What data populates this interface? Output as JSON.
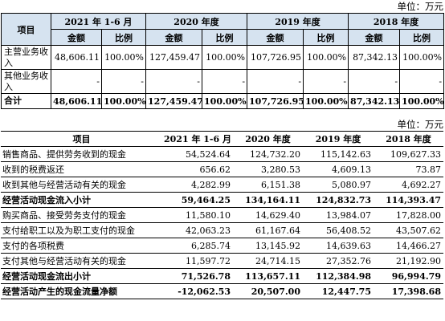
{
  "table1": {
    "unit": "单位：万元",
    "header_item": "项目",
    "periods": [
      "2021 年 1-6 月",
      "2020 年度",
      "2019 年度",
      "2018 年度"
    ],
    "sub_amount": "金额",
    "sub_ratio": "比例",
    "rows": [
      {
        "label": "主营业务收入",
        "cells": [
          "48,606.11",
          "100.00%",
          "127,459.47",
          "100.00%",
          "107,726.95",
          "100.00%",
          "87,342.13",
          "100.00%"
        ]
      },
      {
        "label": "其他业务收入",
        "cells": [
          "-",
          "-",
          "-",
          "-",
          "-",
          "-",
          "-",
          "-"
        ]
      },
      {
        "label": "合计",
        "cells": [
          "48,606.11",
          "100.00%",
          "127,459.47",
          "100.00%",
          "107,726.95",
          "100.00%",
          "87,342.13",
          "100.00%"
        ]
      }
    ]
  },
  "table2": {
    "unit": "单位：万元",
    "headers": [
      "项目",
      "2021 年 1-6 月",
      "2020 年度",
      "2019 年度",
      "2018 年度"
    ],
    "rows": [
      {
        "label": "销售商品、提供劳务收到的现金",
        "cells": [
          "54,524.64",
          "124,732.20",
          "115,142.63",
          "109,627.33"
        ]
      },
      {
        "label": "收到的税费返还",
        "cells": [
          "656.62",
          "3,280.53",
          "4,609.13",
          "73.87"
        ]
      },
      {
        "label": "收到其他与经营活动有关的现金",
        "cells": [
          "4,282.99",
          "6,151.38",
          "5,080.97",
          "4,692.27"
        ]
      },
      {
        "label": "经营活动现金流入小计",
        "cells": [
          "59,464.25",
          "134,164.11",
          "124,832.73",
          "114,393.47"
        ]
      },
      {
        "label": "购买商品、接受劳务支付的现金",
        "cells": [
          "11,580.10",
          "14,629.40",
          "13,984.07",
          "17,828.00"
        ]
      },
      {
        "label": "支付给职工以及为职工支付的现金",
        "cells": [
          "42,063.23",
          "61,167.64",
          "56,408.52",
          "43,507.62"
        ]
      },
      {
        "label": "支付的各项税费",
        "cells": [
          "6,285.74",
          "13,145.92",
          "14,639.63",
          "14,466.27"
        ]
      },
      {
        "label": "支付其他与经营活动有关的现金",
        "cells": [
          "11,597.72",
          "24,714.15",
          "27,352.76",
          "21,192.90"
        ]
      },
      {
        "label": "经营活动现金流出小计",
        "cells": [
          "71,526.78",
          "113,657.11",
          "112,384.98",
          "96,994.79"
        ]
      },
      {
        "label": "经营活动产生的现金流量净额",
        "cells": [
          "-12,062.53",
          "20,507.00",
          "12,447.75",
          "17,398.68"
        ]
      }
    ]
  }
}
